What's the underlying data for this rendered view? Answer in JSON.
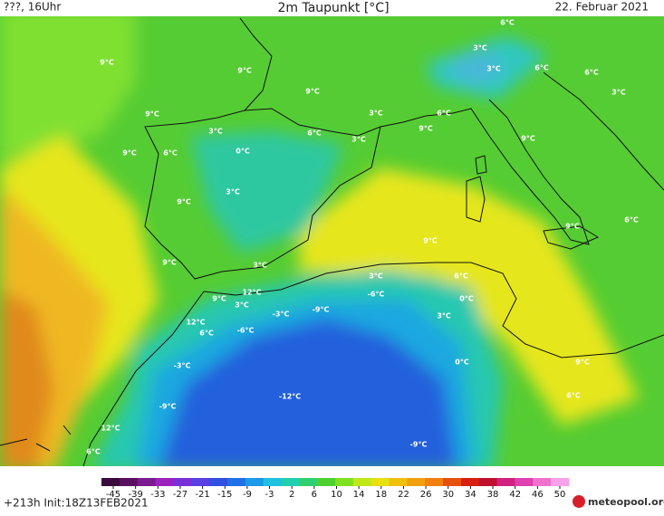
{
  "header": {
    "left": "???, 16Uhr",
    "title": "2m Taupunkt [°C]",
    "date": "22. Februar 2021"
  },
  "map_labels": [
    "6°C",
    "3°C",
    "9°C",
    "9°C",
    "3°C",
    "6°C",
    "6°C",
    "9°C",
    "3°C",
    "9°C",
    "3°C",
    "6°C",
    "3°C",
    "6°C",
    "9°C",
    "0°C",
    "3°C",
    "9°C",
    "9°C",
    "6°C",
    "3°C",
    "9°C",
    "9°C",
    "6°C",
    "9°C",
    "9°C",
    "3°C",
    "3°C",
    "6°C",
    "12°C",
    "9°C",
    "-6°C",
    "0°C",
    "3°C",
    "-3°C",
    "-9°C",
    "12°C",
    "3°C",
    "6°C",
    "-6°C",
    "-3°C",
    "0°C",
    "9°C",
    "-12°C",
    "6°C",
    "-9°C",
    "12°C",
    "-9°C",
    "6°C"
  ],
  "colorbar": {
    "ticks": [
      -45,
      -39,
      -33,
      -27,
      -21,
      -15,
      -9,
      -3,
      2,
      6,
      10,
      14,
      18,
      22,
      26,
      30,
      34,
      38,
      42,
      46,
      50
    ]
  },
  "footer": {
    "run": "+213h Init:18Z13FEB2021",
    "logo": "meteopool.org"
  }
}
